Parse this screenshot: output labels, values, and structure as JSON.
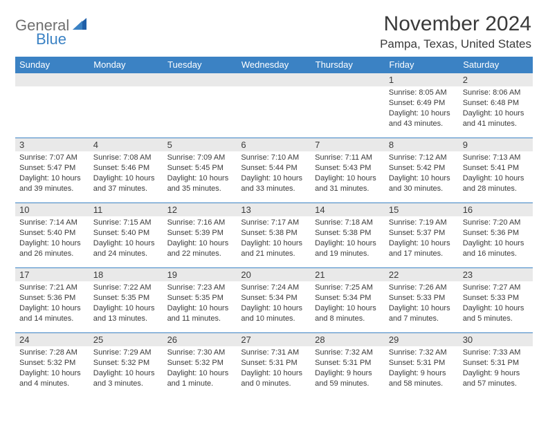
{
  "brand": {
    "name1": "General",
    "name2": "Blue"
  },
  "header": {
    "month_title": "November 2024",
    "location": "Pampa, Texas, United States"
  },
  "colors": {
    "header_bg": "#3b82c4",
    "header_text": "#ffffff",
    "daynum_bg": "#e9e9e9",
    "border": "#3b82c4",
    "text": "#3a3a3a"
  },
  "weekdays": [
    "Sunday",
    "Monday",
    "Tuesday",
    "Wednesday",
    "Thursday",
    "Friday",
    "Saturday"
  ],
  "weeks": [
    [
      null,
      null,
      null,
      null,
      null,
      {
        "n": "1",
        "sunrise": "8:05 AM",
        "sunset": "6:49 PM",
        "daylight": "10 hours and 43 minutes."
      },
      {
        "n": "2",
        "sunrise": "8:06 AM",
        "sunset": "6:48 PM",
        "daylight": "10 hours and 41 minutes."
      }
    ],
    [
      {
        "n": "3",
        "sunrise": "7:07 AM",
        "sunset": "5:47 PM",
        "daylight": "10 hours and 39 minutes."
      },
      {
        "n": "4",
        "sunrise": "7:08 AM",
        "sunset": "5:46 PM",
        "daylight": "10 hours and 37 minutes."
      },
      {
        "n": "5",
        "sunrise": "7:09 AM",
        "sunset": "5:45 PM",
        "daylight": "10 hours and 35 minutes."
      },
      {
        "n": "6",
        "sunrise": "7:10 AM",
        "sunset": "5:44 PM",
        "daylight": "10 hours and 33 minutes."
      },
      {
        "n": "7",
        "sunrise": "7:11 AM",
        "sunset": "5:43 PM",
        "daylight": "10 hours and 31 minutes."
      },
      {
        "n": "8",
        "sunrise": "7:12 AM",
        "sunset": "5:42 PM",
        "daylight": "10 hours and 30 minutes."
      },
      {
        "n": "9",
        "sunrise": "7:13 AM",
        "sunset": "5:41 PM",
        "daylight": "10 hours and 28 minutes."
      }
    ],
    [
      {
        "n": "10",
        "sunrise": "7:14 AM",
        "sunset": "5:40 PM",
        "daylight": "10 hours and 26 minutes."
      },
      {
        "n": "11",
        "sunrise": "7:15 AM",
        "sunset": "5:40 PM",
        "daylight": "10 hours and 24 minutes."
      },
      {
        "n": "12",
        "sunrise": "7:16 AM",
        "sunset": "5:39 PM",
        "daylight": "10 hours and 22 minutes."
      },
      {
        "n": "13",
        "sunrise": "7:17 AM",
        "sunset": "5:38 PM",
        "daylight": "10 hours and 21 minutes."
      },
      {
        "n": "14",
        "sunrise": "7:18 AM",
        "sunset": "5:38 PM",
        "daylight": "10 hours and 19 minutes."
      },
      {
        "n": "15",
        "sunrise": "7:19 AM",
        "sunset": "5:37 PM",
        "daylight": "10 hours and 17 minutes."
      },
      {
        "n": "16",
        "sunrise": "7:20 AM",
        "sunset": "5:36 PM",
        "daylight": "10 hours and 16 minutes."
      }
    ],
    [
      {
        "n": "17",
        "sunrise": "7:21 AM",
        "sunset": "5:36 PM",
        "daylight": "10 hours and 14 minutes."
      },
      {
        "n": "18",
        "sunrise": "7:22 AM",
        "sunset": "5:35 PM",
        "daylight": "10 hours and 13 minutes."
      },
      {
        "n": "19",
        "sunrise": "7:23 AM",
        "sunset": "5:35 PM",
        "daylight": "10 hours and 11 minutes."
      },
      {
        "n": "20",
        "sunrise": "7:24 AM",
        "sunset": "5:34 PM",
        "daylight": "10 hours and 10 minutes."
      },
      {
        "n": "21",
        "sunrise": "7:25 AM",
        "sunset": "5:34 PM",
        "daylight": "10 hours and 8 minutes."
      },
      {
        "n": "22",
        "sunrise": "7:26 AM",
        "sunset": "5:33 PM",
        "daylight": "10 hours and 7 minutes."
      },
      {
        "n": "23",
        "sunrise": "7:27 AM",
        "sunset": "5:33 PM",
        "daylight": "10 hours and 5 minutes."
      }
    ],
    [
      {
        "n": "24",
        "sunrise": "7:28 AM",
        "sunset": "5:32 PM",
        "daylight": "10 hours and 4 minutes."
      },
      {
        "n": "25",
        "sunrise": "7:29 AM",
        "sunset": "5:32 PM",
        "daylight": "10 hours and 3 minutes."
      },
      {
        "n": "26",
        "sunrise": "7:30 AM",
        "sunset": "5:32 PM",
        "daylight": "10 hours and 1 minute."
      },
      {
        "n": "27",
        "sunrise": "7:31 AM",
        "sunset": "5:31 PM",
        "daylight": "10 hours and 0 minutes."
      },
      {
        "n": "28",
        "sunrise": "7:32 AM",
        "sunset": "5:31 PM",
        "daylight": "9 hours and 59 minutes."
      },
      {
        "n": "29",
        "sunrise": "7:32 AM",
        "sunset": "5:31 PM",
        "daylight": "9 hours and 58 minutes."
      },
      {
        "n": "30",
        "sunrise": "7:33 AM",
        "sunset": "5:31 PM",
        "daylight": "9 hours and 57 minutes."
      }
    ]
  ]
}
